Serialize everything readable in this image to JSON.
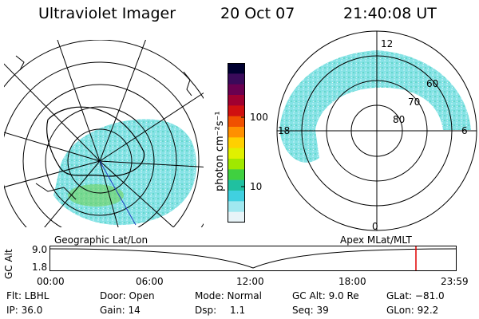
{
  "header": {
    "title": "Ultraviolet Imager",
    "date": "20 Oct 07",
    "time": "21:40:08 UT"
  },
  "colorbar": {
    "unit_label": "photon cm⁻²s⁻¹",
    "ticks": [
      "100",
      "10"
    ],
    "colors": [
      "#000030",
      "#3a0a5a",
      "#6a0050",
      "#a00030",
      "#d01010",
      "#f05000",
      "#ff9000",
      "#ffd000",
      "#e0f000",
      "#a0e800",
      "#40d040",
      "#20c0a0",
      "#40d0e0",
      "#a0e8f0",
      "#e8f4f8"
    ]
  },
  "left_panel": {
    "label": "Geographic Lat/Lon"
  },
  "right_panel": {
    "label": "Apex MLat/MLT",
    "mlt_labels": {
      "top": "12",
      "left": "18",
      "right": "6",
      "bottom": "0"
    },
    "lat_labels": [
      "60",
      "70",
      "80"
    ]
  },
  "altitude_plot": {
    "ylabel": "GC Alt",
    "yticks": [
      "9.0",
      "1.8"
    ],
    "xticks": [
      "00:00",
      "06:00",
      "12:00",
      "18:00",
      "23:59"
    ],
    "marker_color": "#e00000"
  },
  "info": {
    "row1": {
      "flt": "Flt: LBHL",
      "door": "Door: Open",
      "mode": "Mode: Normal",
      "gcalt": "GC Alt: 9.0 Re",
      "glat": "GLat: −81.0"
    },
    "row2": {
      "ip": "IP: 36.0",
      "gain": "Gain: 14",
      "dsp_label": "Dsp:",
      "dsp_value": "1.1",
      "seq": "Seq: 39",
      "glon": "GLon:  92.2"
    }
  }
}
